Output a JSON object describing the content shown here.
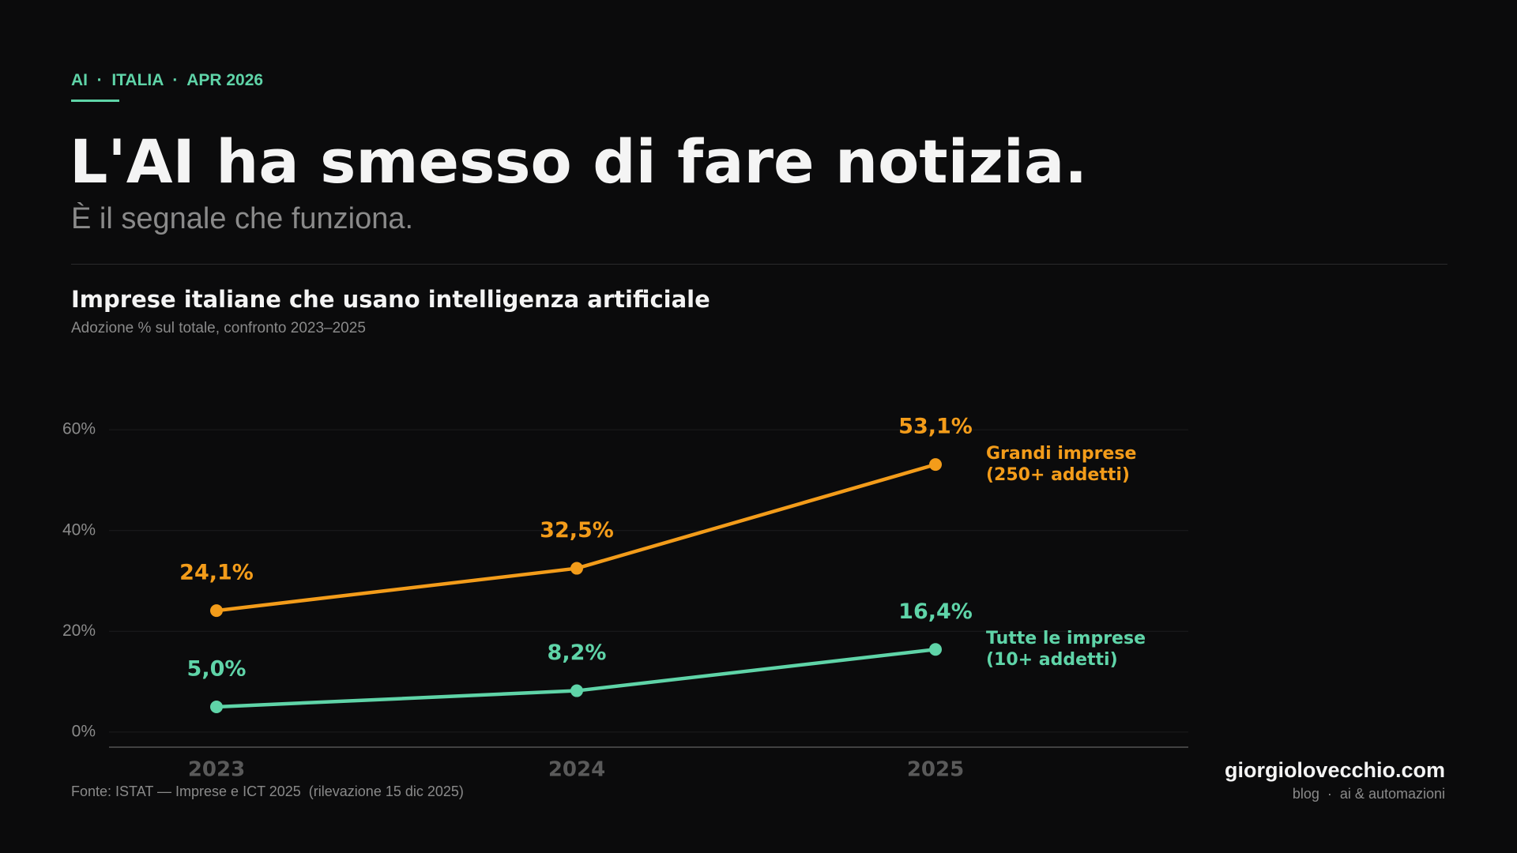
{
  "kicker": "AI  ·  ITALIA  ·  APR 2026",
  "title": "L'AI ha smesso di fare notizia.",
  "subtitle": "È il segnale che funziona.",
  "chart_data": {
    "type": "line",
    "title": "Imprese italiane che usano intelligenza artificiale",
    "subtitle": "Adozione % sul totale, confronto 2023–2025",
    "categories": [
      "2023",
      "2024",
      "2025"
    ],
    "series": [
      {
        "name": "Grandi imprese\n(250+ addetti)",
        "color": "#f39c1a",
        "values": [
          24.1,
          32.5,
          53.1
        ],
        "value_labels": [
          "24,1%",
          "32,5%",
          "53,1%"
        ]
      },
      {
        "name": "Tutte le imprese\n(10+ addetti)",
        "color": "#5fd4a8",
        "values": [
          5.0,
          8.2,
          16.4
        ],
        "value_labels": [
          "5,0%",
          "8,2%",
          "16,4%"
        ]
      }
    ],
    "ylim": [
      -3,
      63
    ],
    "yticks": [
      {
        "value": 0,
        "label": "0%"
      },
      {
        "value": 20,
        "label": "20%"
      },
      {
        "value": 40,
        "label": "40%"
      },
      {
        "value": 60,
        "label": "60%"
      }
    ],
    "grid": true,
    "source": "Fonte: ISTAT — Imprese e ICT 2025  (rilevazione 15 dic 2025)"
  },
  "footer": {
    "brand": "giorgiolovecchio.com",
    "tagline": "blog  ·  ai & automazioni"
  }
}
